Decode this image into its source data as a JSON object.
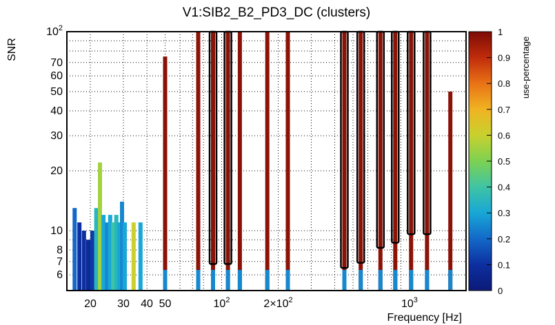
{
  "chart_data": {
    "type": "heatmap",
    "title": "V1:SIB2_B2_PD3_DC (clusters)",
    "xlabel": "Frequency [Hz]",
    "ylabel": "SNR",
    "x_scale": "log",
    "y_scale": "log",
    "xlim": [
      15,
      2000
    ],
    "ylim": [
      5,
      100
    ],
    "x_tick_labels": [
      {
        "value": 20,
        "label": "20"
      },
      {
        "value": 30,
        "label": "30"
      },
      {
        "value": 40,
        "label": "40"
      },
      {
        "value": 50,
        "label": "50"
      },
      {
        "value": 100,
        "label": "10^2"
      },
      {
        "value": 200,
        "label": "2×10^2"
      },
      {
        "value": 1000,
        "label": "10^3"
      }
    ],
    "y_tick_labels": [
      {
        "value": 6,
        "label": "6"
      },
      {
        "value": 7,
        "label": "7"
      },
      {
        "value": 8,
        "label": "8"
      },
      {
        "value": 10,
        "label": "10"
      },
      {
        "value": 20,
        "label": "20"
      },
      {
        "value": 30,
        "label": "30"
      },
      {
        "value": 40,
        "label": "40"
      },
      {
        "value": 50,
        "label": "50"
      },
      {
        "value": 60,
        "label": "60"
      },
      {
        "value": 70,
        "label": "70"
      },
      {
        "value": 100,
        "label": "10^2"
      }
    ],
    "colorbar": {
      "label": "use-percentage",
      "range": [
        0,
        1
      ],
      "ticks": [
        "0",
        "0.1",
        "0.2",
        "0.3",
        "0.4",
        "0.5",
        "0.6",
        "0.7",
        "0.8",
        "0.9",
        "1"
      ]
    },
    "grid": true,
    "lines": [
      {
        "f": 50,
        "snr_top": 75,
        "use": 0.98
      },
      {
        "f": 75,
        "snr_top": 100,
        "use": 0.98
      },
      {
        "f": 125,
        "snr_top": 100,
        "use": 0.98
      },
      {
        "f": 175,
        "snr_top": 100,
        "use": 0.98
      },
      {
        "f": 225,
        "snr_top": 100,
        "use": 0.98
      },
      {
        "f": 1650,
        "snr_top": 50,
        "use": 0.98
      }
    ],
    "boxed_lines": [
      {
        "f": 90,
        "snr_low": 6.8
      },
      {
        "f": 108,
        "snr_low": 6.8
      },
      {
        "f": 450,
        "snr_low": 6.5
      },
      {
        "f": 550,
        "snr_low": 6.9
      },
      {
        "f": 700,
        "snr_low": 8.2
      },
      {
        "f": 840,
        "snr_low": 8.7
      },
      {
        "f": 1020,
        "snr_low": 9.6
      },
      {
        "f": 1240,
        "snr_low": 9.6
      }
    ],
    "low_frequency_columns": [
      {
        "f": 16.5,
        "snr_top": 13,
        "use": 0.2
      },
      {
        "f": 17.5,
        "snr_top": 11,
        "use": 0.1
      },
      {
        "f": 18.5,
        "snr_top": 10,
        "use": 0.1
      },
      {
        "f": 19.5,
        "snr_top": 9,
        "use": 0.08
      },
      {
        "f": 20.5,
        "snr_top": 10,
        "use": 0.12
      },
      {
        "f": 21.5,
        "snr_top": 13,
        "use": 0.35
      },
      {
        "f": 22.5,
        "snr_top": 22,
        "use": 0.55
      },
      {
        "f": 23.5,
        "snr_top": 12,
        "use": 0.3
      },
      {
        "f": 24.5,
        "snr_top": 11,
        "use": 0.25
      },
      {
        "f": 25.5,
        "snr_top": 12,
        "use": 0.3
      },
      {
        "f": 26.5,
        "snr_top": 11,
        "use": 0.4
      },
      {
        "f": 27.5,
        "snr_top": 12,
        "use": 0.35
      },
      {
        "f": 28.5,
        "snr_top": 11,
        "use": 0.3
      },
      {
        "f": 29.5,
        "snr_top": 14,
        "use": 0.25
      },
      {
        "f": 30.5,
        "snr_top": 11,
        "use": 0.3
      },
      {
        "f": 34,
        "snr_top": 11,
        "use": 0.6
      },
      {
        "f": 37,
        "snr_top": 11,
        "use": 0.3
      }
    ]
  }
}
